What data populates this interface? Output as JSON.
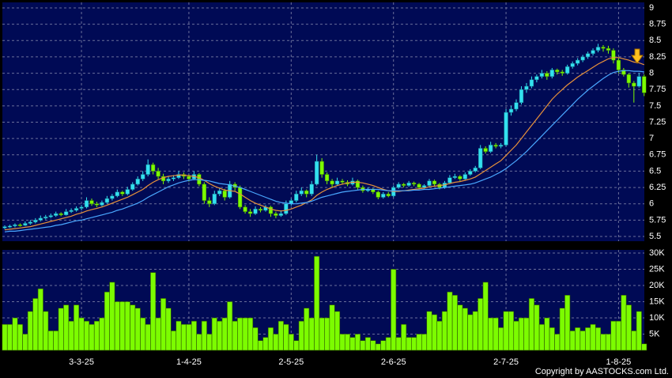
{
  "chart_data": [
    {
      "type": "candlestick",
      "categories": [
        null,
        null,
        null,
        null,
        null,
        null,
        null,
        null,
        null,
        null,
        null,
        null,
        null,
        null,
        null,
        "3-3-25",
        null,
        null,
        null,
        null,
        null,
        null,
        null,
        null,
        null,
        null,
        null,
        null,
        null,
        null,
        null,
        null,
        null,
        null,
        null,
        null,
        "1-4-25",
        null,
        null,
        null,
        null,
        null,
        null,
        null,
        null,
        null,
        null,
        null,
        null,
        null,
        null,
        null,
        null,
        null,
        null,
        null,
        "2-5-25",
        null,
        null,
        null,
        null,
        null,
        null,
        null,
        null,
        null,
        null,
        null,
        null,
        null,
        null,
        null,
        null,
        null,
        null,
        null,
        "2-6-25",
        null,
        null,
        null,
        null,
        null,
        null,
        null,
        null,
        null,
        null,
        null,
        null,
        null,
        null,
        null,
        null,
        null,
        null,
        null,
        null,
        null,
        "2-7-25",
        null,
        null,
        null,
        null,
        null,
        null,
        null,
        null,
        null,
        null,
        null,
        null,
        null,
        null,
        null,
        null,
        null,
        null,
        null,
        null,
        null,
        "1-8-25",
        null,
        null,
        null,
        null,
        null
      ],
      "ohlc": [
        [
          5.63,
          5.67,
          5.61,
          5.65
        ],
        [
          5.65,
          5.68,
          5.63,
          5.66
        ],
        [
          5.66,
          5.7,
          5.64,
          5.68
        ],
        [
          5.68,
          5.7,
          5.65,
          5.67
        ],
        [
          5.67,
          5.73,
          5.66,
          5.7
        ],
        [
          5.7,
          5.75,
          5.68,
          5.72
        ],
        [
          5.72,
          5.78,
          5.7,
          5.75
        ],
        [
          5.75,
          5.82,
          5.73,
          5.78
        ],
        [
          5.78,
          5.83,
          5.76,
          5.8
        ],
        [
          5.8,
          5.85,
          5.78,
          5.82
        ],
        [
          5.82,
          5.88,
          5.8,
          5.85
        ],
        [
          5.85,
          5.87,
          5.81,
          5.83
        ],
        [
          5.83,
          5.92,
          5.82,
          5.88
        ],
        [
          5.88,
          5.93,
          5.86,
          5.9
        ],
        [
          5.9,
          5.96,
          5.88,
          5.93
        ],
        [
          5.93,
          5.98,
          5.9,
          5.95
        ],
        [
          5.95,
          6.1,
          5.93,
          6.05
        ],
        [
          6.05,
          6.08,
          5.97,
          6.0
        ],
        [
          6.0,
          6.03,
          5.95,
          5.98
        ],
        [
          5.98,
          6.05,
          5.96,
          6.02
        ],
        [
          6.02,
          6.12,
          6.0,
          6.08
        ],
        [
          6.08,
          6.15,
          6.05,
          6.12
        ],
        [
          6.12,
          6.22,
          6.1,
          6.18
        ],
        [
          6.18,
          6.2,
          6.12,
          6.15
        ],
        [
          6.15,
          6.26,
          6.13,
          6.22
        ],
        [
          6.22,
          6.33,
          6.2,
          6.3
        ],
        [
          6.3,
          6.42,
          6.28,
          6.38
        ],
        [
          6.38,
          6.5,
          6.35,
          6.45
        ],
        [
          6.45,
          6.68,
          6.42,
          6.6
        ],
        [
          6.6,
          6.63,
          6.45,
          6.5
        ],
        [
          6.5,
          6.55,
          6.38,
          6.42
        ],
        [
          6.42,
          6.46,
          6.3,
          6.35
        ],
        [
          6.35,
          6.42,
          6.32,
          6.38
        ],
        [
          6.38,
          6.44,
          6.35,
          6.4
        ],
        [
          6.4,
          6.5,
          6.38,
          6.45
        ],
        [
          6.45,
          6.48,
          6.38,
          6.42
        ],
        [
          6.42,
          6.45,
          6.34,
          6.38
        ],
        [
          6.38,
          6.5,
          6.36,
          6.45
        ],
        [
          6.45,
          6.47,
          6.27,
          6.3
        ],
        [
          6.3,
          6.33,
          6.0,
          6.05
        ],
        [
          6.05,
          6.1,
          5.95,
          6.0
        ],
        [
          6.0,
          6.2,
          5.98,
          6.15
        ],
        [
          6.15,
          6.25,
          6.12,
          6.2
        ],
        [
          6.2,
          6.23,
          6.05,
          6.1
        ],
        [
          6.1,
          6.35,
          6.08,
          6.3
        ],
        [
          6.3,
          6.33,
          6.2,
          6.25
        ],
        [
          6.25,
          6.28,
          5.92,
          5.95
        ],
        [
          5.95,
          5.98,
          5.85,
          5.88
        ],
        [
          5.88,
          5.92,
          5.8,
          5.85
        ],
        [
          5.85,
          5.96,
          5.83,
          5.92
        ],
        [
          5.92,
          5.95,
          5.87,
          5.9
        ],
        [
          5.9,
          5.98,
          5.88,
          5.95
        ],
        [
          5.95,
          5.97,
          5.8,
          5.85
        ],
        [
          5.85,
          5.88,
          5.78,
          5.82
        ],
        [
          5.82,
          5.9,
          5.8,
          5.85
        ],
        [
          5.85,
          6.05,
          5.83,
          6.0
        ],
        [
          6.0,
          6.08,
          5.97,
          6.05
        ],
        [
          6.05,
          6.2,
          6.02,
          6.15
        ],
        [
          6.15,
          6.25,
          6.12,
          6.2
        ],
        [
          6.2,
          6.22,
          6.1,
          6.15
        ],
        [
          6.15,
          6.35,
          6.12,
          6.3
        ],
        [
          6.3,
          6.75,
          6.28,
          6.65
        ],
        [
          6.65,
          6.7,
          6.4,
          6.45
        ],
        [
          6.45,
          6.48,
          6.3,
          6.35
        ],
        [
          6.35,
          6.38,
          6.25,
          6.3
        ],
        [
          6.3,
          6.4,
          6.28,
          6.35
        ],
        [
          6.35,
          6.38,
          6.3,
          6.33
        ],
        [
          6.33,
          6.36,
          6.27,
          6.3
        ],
        [
          6.3,
          6.4,
          6.28,
          6.35
        ],
        [
          6.35,
          6.37,
          6.22,
          6.25
        ],
        [
          6.25,
          6.28,
          6.17,
          6.2
        ],
        [
          6.2,
          6.25,
          6.18,
          6.22
        ],
        [
          6.22,
          6.24,
          6.15,
          6.18
        ],
        [
          6.18,
          6.2,
          6.07,
          6.1
        ],
        [
          6.1,
          6.18,
          6.08,
          6.15
        ],
        [
          6.15,
          6.18,
          6.1,
          6.12
        ],
        [
          6.12,
          6.28,
          6.1,
          6.25
        ],
        [
          6.25,
          6.33,
          6.23,
          6.3
        ],
        [
          6.3,
          6.32,
          6.25,
          6.28
        ],
        [
          6.28,
          6.35,
          6.26,
          6.32
        ],
        [
          6.32,
          6.34,
          6.27,
          6.3
        ],
        [
          6.3,
          6.32,
          6.22,
          6.25
        ],
        [
          6.25,
          6.3,
          6.23,
          6.28
        ],
        [
          6.28,
          6.38,
          6.26,
          6.35
        ],
        [
          6.35,
          6.37,
          6.27,
          6.3
        ],
        [
          6.3,
          6.32,
          6.22,
          6.25
        ],
        [
          6.25,
          6.35,
          6.23,
          6.32
        ],
        [
          6.32,
          6.44,
          6.3,
          6.4
        ],
        [
          6.4,
          6.46,
          6.38,
          6.42
        ],
        [
          6.42,
          6.44,
          6.35,
          6.38
        ],
        [
          6.38,
          6.48,
          6.36,
          6.45
        ],
        [
          6.45,
          6.53,
          6.43,
          6.5
        ],
        [
          6.5,
          6.58,
          6.48,
          6.55
        ],
        [
          6.55,
          6.9,
          6.53,
          6.85
        ],
        [
          6.85,
          6.88,
          6.77,
          6.8
        ],
        [
          6.8,
          6.95,
          6.78,
          6.9
        ],
        [
          6.9,
          6.93,
          6.85,
          6.88
        ],
        [
          6.88,
          6.93,
          6.85,
          6.9
        ],
        [
          6.9,
          7.45,
          6.88,
          7.4
        ],
        [
          7.4,
          7.5,
          7.35,
          7.45
        ],
        [
          7.45,
          7.6,
          7.42,
          7.55
        ],
        [
          7.55,
          7.8,
          7.52,
          7.75
        ],
        [
          7.75,
          7.85,
          7.7,
          7.8
        ],
        [
          7.8,
          7.95,
          7.77,
          7.9
        ],
        [
          7.9,
          7.98,
          7.86,
          7.95
        ],
        [
          7.95,
          8.05,
          7.92,
          8.0
        ],
        [
          8.0,
          8.03,
          7.9,
          7.95
        ],
        [
          7.95,
          8.08,
          7.92,
          8.05
        ],
        [
          8.05,
          8.07,
          7.98,
          8.02
        ],
        [
          8.02,
          8.05,
          7.96,
          8.0
        ],
        [
          8.0,
          8.13,
          7.98,
          8.1
        ],
        [
          8.1,
          8.18,
          8.07,
          8.15
        ],
        [
          8.15,
          8.23,
          8.12,
          8.2
        ],
        [
          8.2,
          8.28,
          8.17,
          8.25
        ],
        [
          8.25,
          8.33,
          8.22,
          8.3
        ],
        [
          8.3,
          8.38,
          8.27,
          8.35
        ],
        [
          8.35,
          8.45,
          8.32,
          8.4
        ],
        [
          8.4,
          8.43,
          8.33,
          8.38
        ],
        [
          8.38,
          8.42,
          8.3,
          8.35
        ],
        [
          8.35,
          8.38,
          8.15,
          8.2
        ],
        [
          8.2,
          8.23,
          8.0,
          8.05
        ],
        [
          8.05,
          8.08,
          7.95,
          7.98
        ],
        [
          7.98,
          8.0,
          7.78,
          7.85
        ],
        [
          7.85,
          7.88,
          7.55,
          7.8
        ],
        [
          7.8,
          8.0,
          7.78,
          7.95
        ],
        [
          7.95,
          7.98,
          7.65,
          7.7
        ]
      ],
      "up_color": "#33e0f0",
      "down_color": "#7cfc00",
      "lines": [
        {
          "color": "#e8923a",
          "values": [
            5.6,
            5.61,
            5.62,
            5.63,
            5.64,
            5.65,
            5.67,
            5.69,
            5.71,
            5.73,
            5.75,
            5.77,
            5.79,
            5.81,
            5.84,
            5.86,
            5.89,
            5.91,
            5.93,
            5.95,
            5.98,
            6.01,
            6.04,
            6.07,
            6.1,
            6.14,
            6.18,
            6.22,
            6.28,
            6.33,
            6.37,
            6.4,
            6.42,
            6.43,
            6.44,
            6.44,
            6.43,
            6.42,
            6.4,
            6.36,
            6.31,
            6.27,
            6.24,
            6.21,
            6.2,
            6.19,
            6.15,
            6.1,
            6.05,
            6.01,
            5.98,
            5.95,
            5.92,
            5.9,
            5.89,
            5.9,
            5.92,
            5.95,
            5.98,
            6.02,
            6.06,
            6.13,
            6.18,
            6.22,
            6.25,
            6.28,
            6.3,
            6.32,
            6.33,
            6.33,
            6.32,
            6.3,
            6.28,
            6.25,
            6.22,
            6.2,
            6.19,
            6.19,
            6.2,
            6.21,
            6.22,
            6.23,
            6.24,
            6.26,
            6.27,
            6.28,
            6.29,
            6.31,
            6.33,
            6.34,
            6.36,
            6.38,
            6.41,
            6.46,
            6.51,
            6.56,
            6.61,
            6.66,
            6.74,
            6.82,
            6.9,
            7.0,
            7.1,
            7.2,
            7.3,
            7.4,
            7.5,
            7.6,
            7.68,
            7.75,
            7.82,
            7.88,
            7.94,
            7.99,
            8.04,
            8.09,
            8.14,
            8.18,
            8.22,
            8.24,
            8.24,
            8.22,
            8.2,
            8.17,
            8.16,
            8.13
          ]
        },
        {
          "color": "#4aa8ff",
          "values": [
            5.57,
            5.58,
            5.58,
            5.59,
            5.6,
            5.61,
            5.62,
            5.63,
            5.64,
            5.65,
            5.67,
            5.68,
            5.7,
            5.72,
            5.74,
            5.75,
            5.77,
            5.79,
            5.81,
            5.83,
            5.85,
            5.87,
            5.9,
            5.92,
            5.95,
            5.98,
            6.01,
            6.05,
            6.1,
            6.14,
            6.18,
            6.22,
            6.26,
            6.29,
            6.32,
            6.34,
            6.36,
            6.37,
            6.37,
            6.36,
            6.35,
            6.33,
            6.31,
            6.3,
            6.29,
            6.27,
            6.25,
            6.22,
            6.19,
            6.16,
            6.13,
            6.1,
            6.07,
            6.04,
            6.02,
            6.01,
            6.0,
            6.0,
            6.01,
            6.02,
            6.04,
            6.07,
            6.1,
            6.12,
            6.14,
            6.16,
            6.18,
            6.19,
            6.2,
            6.21,
            6.22,
            6.22,
            6.22,
            6.22,
            6.21,
            6.2,
            6.2,
            6.2,
            6.2,
            6.2,
            6.21,
            6.21,
            6.22,
            6.22,
            6.23,
            6.24,
            6.25,
            6.26,
            6.27,
            6.28,
            6.29,
            6.3,
            6.32,
            6.35,
            6.38,
            6.41,
            6.45,
            6.49,
            6.54,
            6.6,
            6.66,
            6.73,
            6.8,
            6.88,
            6.96,
            7.04,
            7.12,
            7.2,
            7.28,
            7.36,
            7.44,
            7.52,
            7.6,
            7.67,
            7.74,
            7.8,
            7.86,
            7.92,
            7.97,
            8.01,
            8.03,
            8.04,
            8.04,
            8.03,
            8.03,
            8.02
          ]
        }
      ],
      "ylim": [
        5.5,
        9
      ],
      "yticks": [
        5.5,
        5.75,
        6,
        6.25,
        6.5,
        6.75,
        7,
        7.25,
        7.5,
        7.75,
        8,
        8.25,
        8.5,
        8.75,
        9
      ],
      "grid": true
    },
    {
      "type": "bar",
      "color": "#7cfc00",
      "values": [
        8000,
        8000,
        10000,
        8000,
        5000,
        12000,
        16000,
        19000,
        12000,
        6000,
        6000,
        13000,
        14000,
        9000,
        14000,
        10000,
        9000,
        8000,
        9000,
        10000,
        18000,
        21000,
        15000,
        15000,
        15000,
        14000,
        13000,
        10000,
        8000,
        24000,
        10000,
        16000,
        13000,
        6000,
        9000,
        8000,
        8000,
        9000,
        5000,
        9000,
        5000,
        10000,
        9000,
        10000,
        15000,
        9000,
        10000,
        10000,
        10000,
        7000,
        3000,
        4000,
        7000,
        5000,
        9000,
        8000,
        5000,
        3000,
        9000,
        13000,
        10000,
        29000,
        10000,
        10000,
        14000,
        12000,
        5000,
        5000,
        4000,
        5000,
        3000,
        4000,
        3000,
        2000,
        3000,
        4000,
        25000,
        4000,
        8000,
        4000,
        4000,
        5000,
        5000,
        12000,
        11000,
        9000,
        12000,
        18000,
        17000,
        14000,
        13000,
        11000,
        12000,
        16000,
        21000,
        10000,
        10000,
        7000,
        12000,
        12000,
        9000,
        10000,
        10000,
        16000,
        14000,
        8000,
        10000,
        7000,
        5000,
        13000,
        17000,
        6000,
        7000,
        6000,
        7000,
        8000,
        7000,
        5000,
        5000,
        9000,
        9000,
        17000,
        14000,
        6000,
        12000,
        2000
      ],
      "ylim": [
        0,
        30000
      ],
      "yticks": [
        {
          "value": 5000,
          "label": "5K"
        },
        {
          "value": 10000,
          "label": "10K"
        },
        {
          "value": 15000,
          "label": "15K"
        },
        {
          "value": 20000,
          "label": "20K"
        },
        {
          "value": 25000,
          "label": "25K"
        },
        {
          "value": 30000,
          "label": "30K"
        }
      ],
      "grid": true
    }
  ],
  "footer": {
    "copyright": "Copyright by AASTOCKS.com Ltd."
  }
}
